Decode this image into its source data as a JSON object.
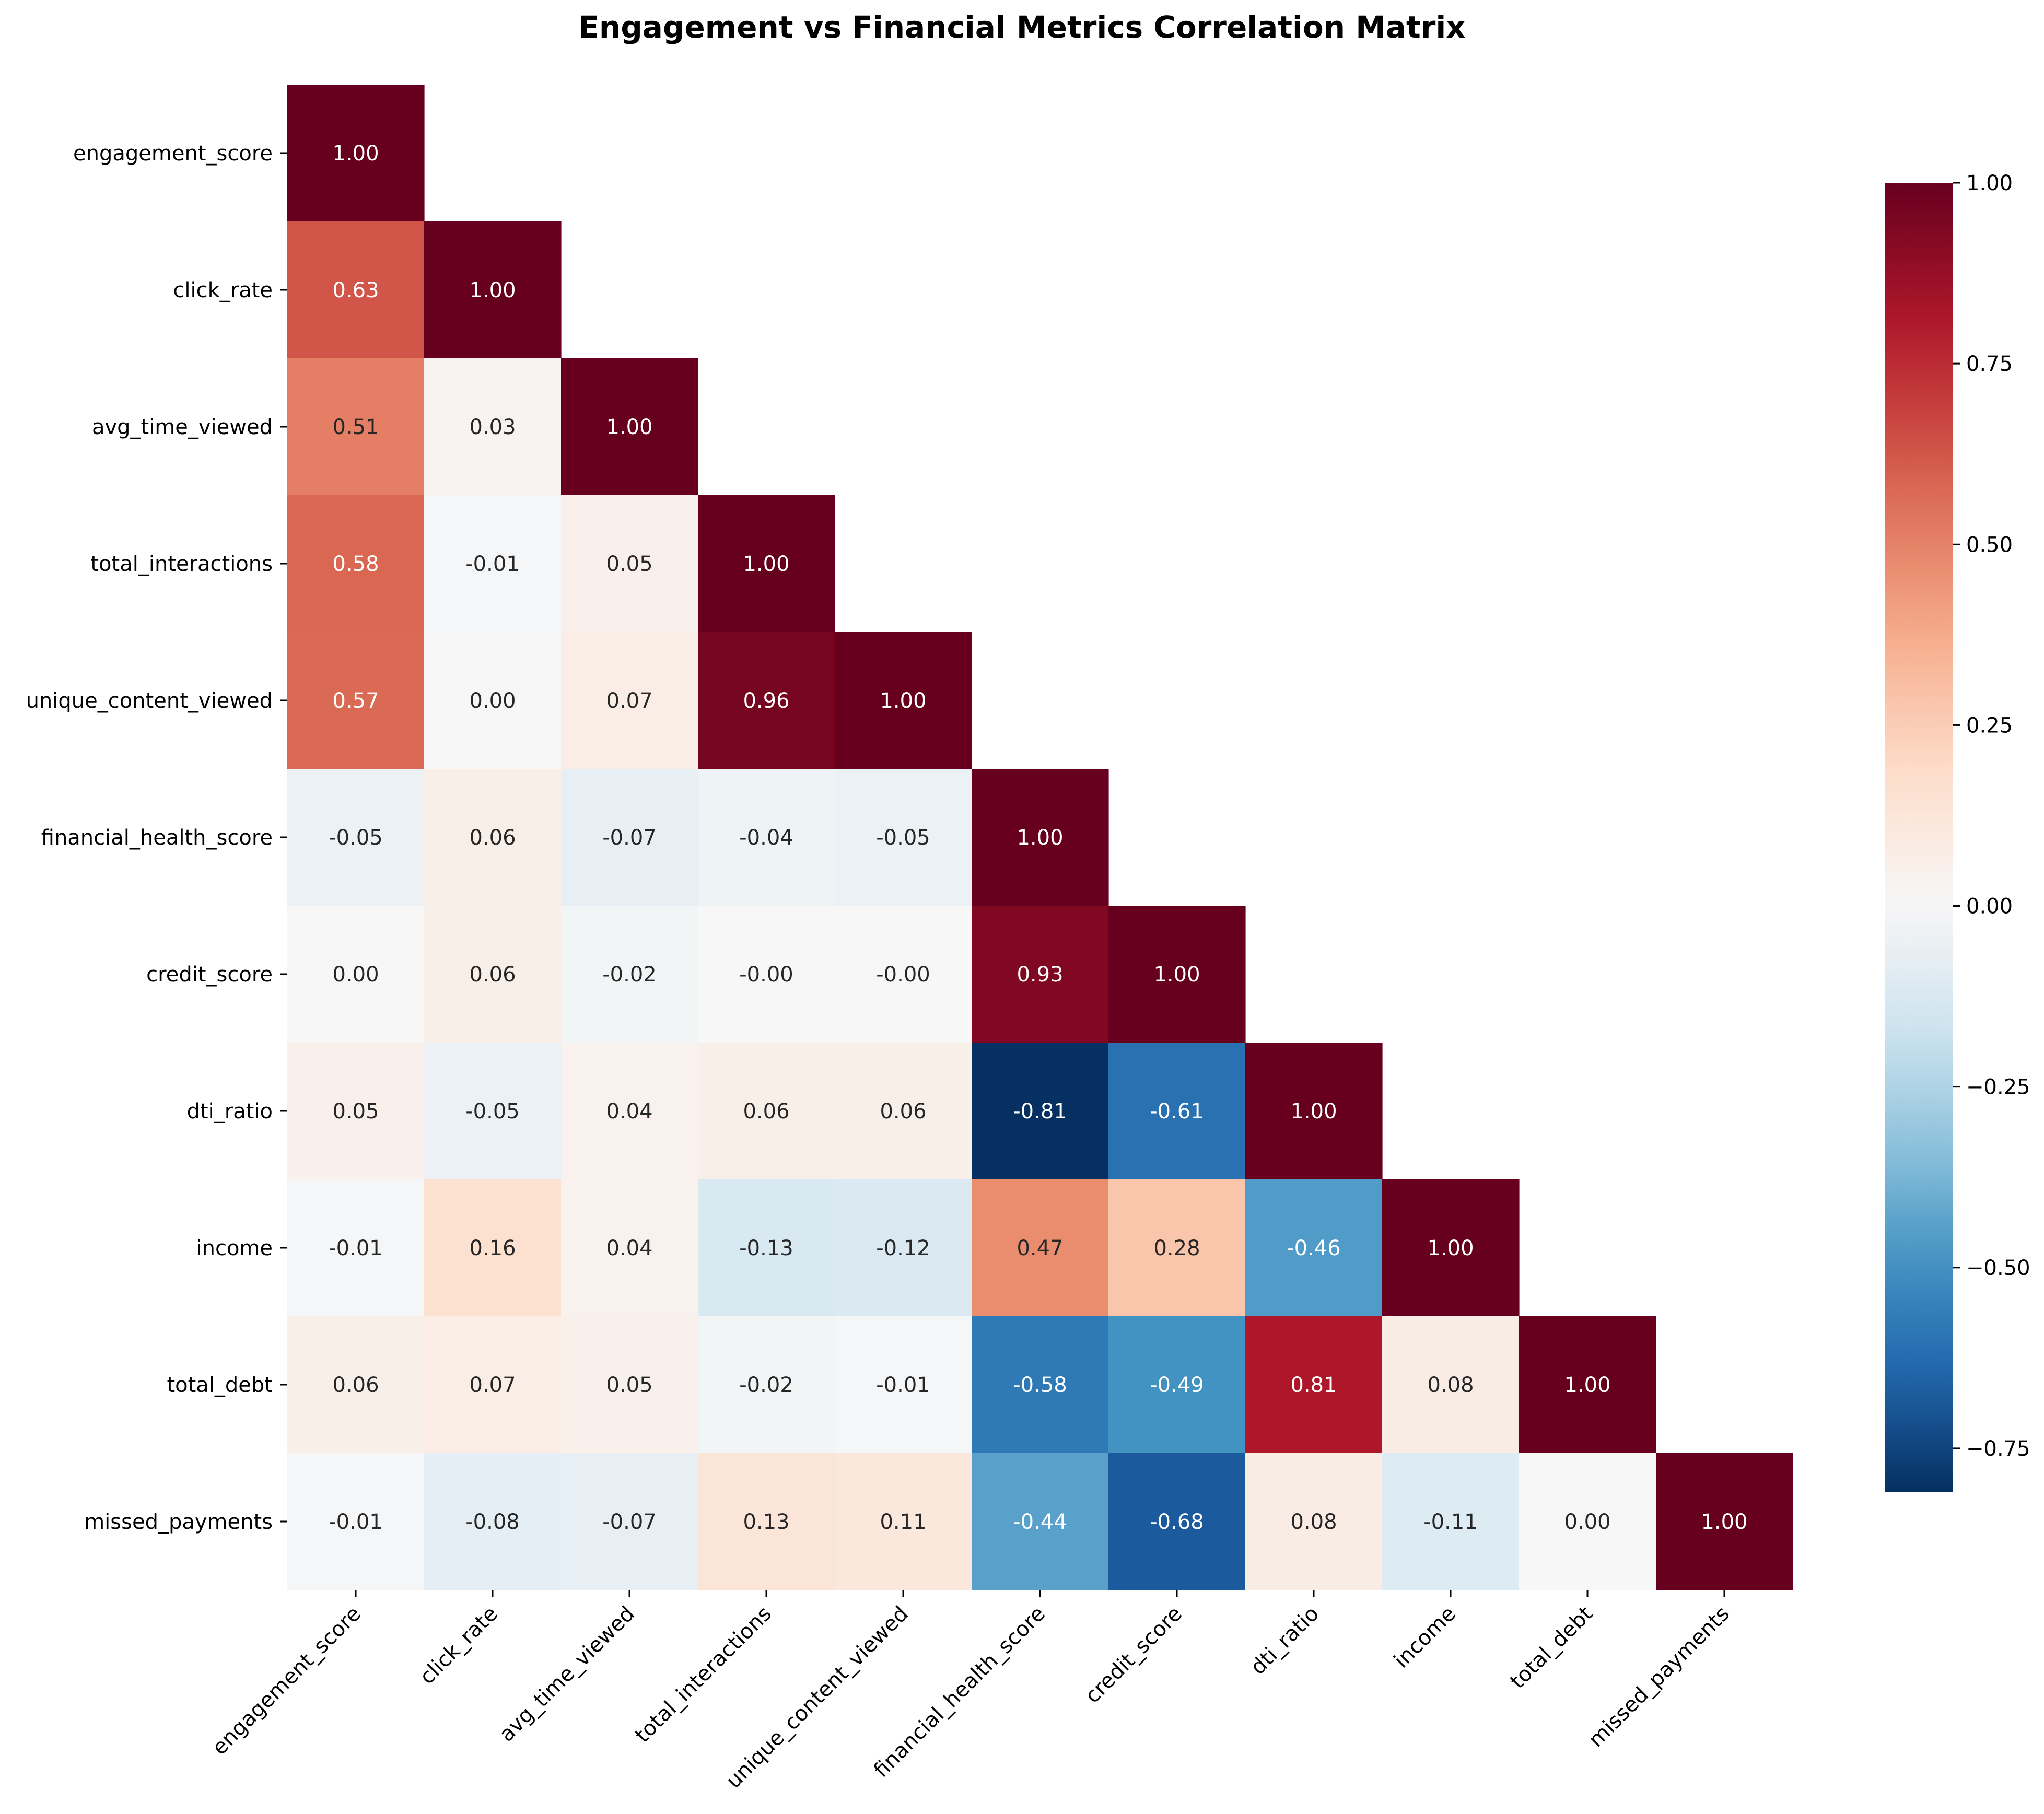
{
  "chart_data": {
    "type": "heatmap",
    "title": "Engagement vs Financial Metrics Correlation Matrix",
    "mask": "upper-triangle",
    "annotation_format": "0.00",
    "colormap": "RdBu_r",
    "variables": [
      "engagement_score",
      "click_rate",
      "avg_time_viewed",
      "total_interactions",
      "unique_content_viewed",
      "financial_health_score",
      "credit_score",
      "dti_ratio",
      "income",
      "total_debt",
      "missed_payments"
    ],
    "values": [
      [
        1.0
      ],
      [
        0.63,
        1.0
      ],
      [
        0.51,
        0.03,
        1.0
      ],
      [
        0.58,
        -0.01,
        0.05,
        1.0
      ],
      [
        0.57,
        0.0,
        0.07,
        0.96,
        1.0
      ],
      [
        -0.05,
        0.06,
        -0.07,
        -0.04,
        -0.05,
        1.0
      ],
      [
        0.0,
        0.06,
        -0.02,
        -0.0,
        -0.0,
        0.93,
        1.0
      ],
      [
        0.05,
        -0.05,
        0.04,
        0.06,
        0.06,
        -0.81,
        -0.61,
        1.0
      ],
      [
        -0.01,
        0.16,
        0.04,
        -0.13,
        -0.12,
        0.47,
        0.28,
        -0.46,
        1.0
      ],
      [
        0.06,
        0.07,
        0.05,
        -0.02,
        -0.01,
        -0.58,
        -0.49,
        0.81,
        0.08,
        1.0
      ],
      [
        -0.01,
        -0.08,
        -0.07,
        0.13,
        0.11,
        -0.44,
        -0.68,
        0.08,
        -0.11,
        0.0,
        1.0
      ]
    ],
    "colorbar": {
      "range": [
        -0.81,
        1.0
      ],
      "ticks": [
        1.0,
        0.75,
        0.5,
        0.25,
        0.0,
        -0.25,
        -0.5,
        -0.75
      ],
      "tick_labels": [
        "1.00",
        "0.75",
        "0.50",
        "0.25",
        "0.00",
        "−0.25",
        "−0.50",
        "−0.75"
      ]
    },
    "grid": false,
    "legend": "colorbar-right"
  }
}
